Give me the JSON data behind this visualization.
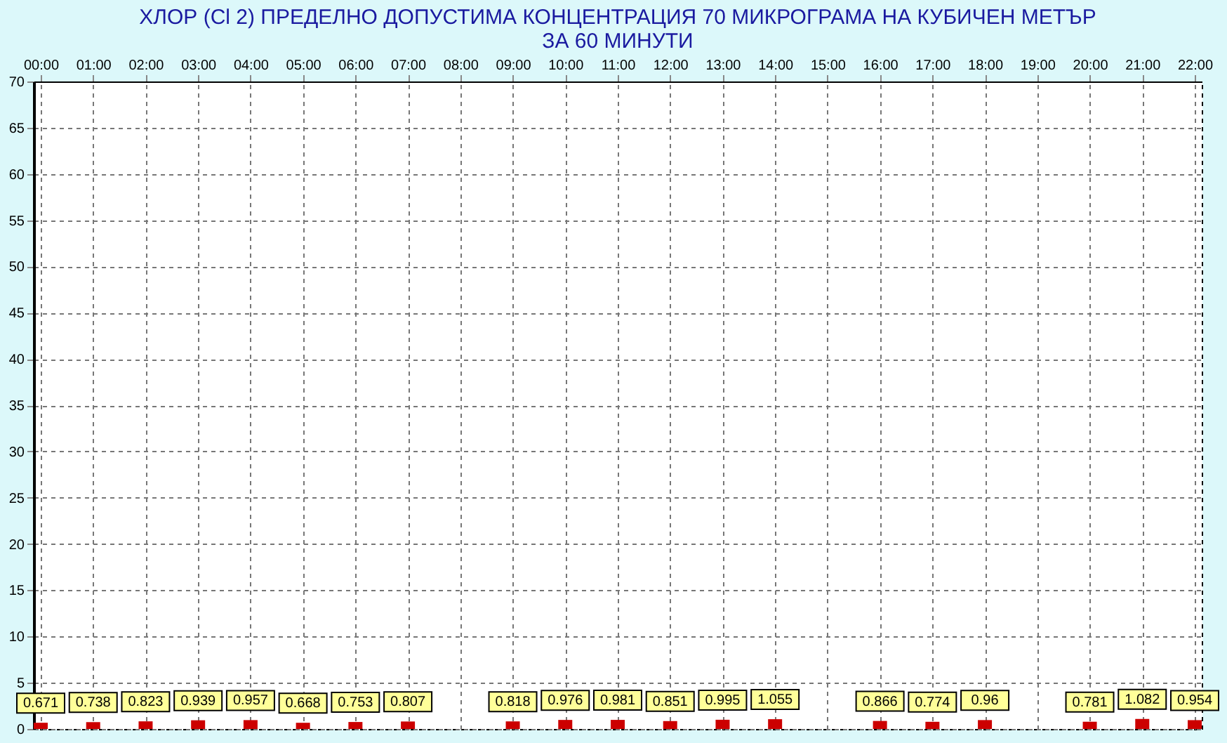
{
  "chart_data": {
    "type": "bar",
    "title": [
      "ХЛОР  (Cl 2)    ПРЕДЕЛНО ДОПУСТИМА КОНЦЕНТРАЦИЯ 70 МИКРОГРАМА  НА КУБИЧЕН МЕТЪР",
      "ЗА 60 МИНУТИ"
    ],
    "categories": [
      "00:00",
      "01:00",
      "02:00",
      "03:00",
      "04:00",
      "05:00",
      "06:00",
      "07:00",
      "08:00",
      "09:00",
      "10:00",
      "11:00",
      "12:00",
      "13:00",
      "14:00",
      "15:00",
      "16:00",
      "17:00",
      "18:00",
      "19:00",
      "20:00",
      "21:00",
      "22:00"
    ],
    "values": [
      0.671,
      0.738,
      0.823,
      0.939,
      0.957,
      0.668,
      0.753,
      0.807,
      null,
      0.818,
      0.976,
      0.981,
      0.851,
      0.995,
      1.055,
      null,
      0.866,
      0.774,
      0.96,
      null,
      0.781,
      1.082,
      0.954
    ],
    "color": "#cc0000",
    "ylim": [
      0,
      70
    ],
    "yticks": [
      0,
      5,
      10,
      15,
      20,
      25,
      30,
      35,
      40,
      45,
      50,
      55,
      60,
      65,
      70
    ],
    "grid": true,
    "data_labels": true
  }
}
